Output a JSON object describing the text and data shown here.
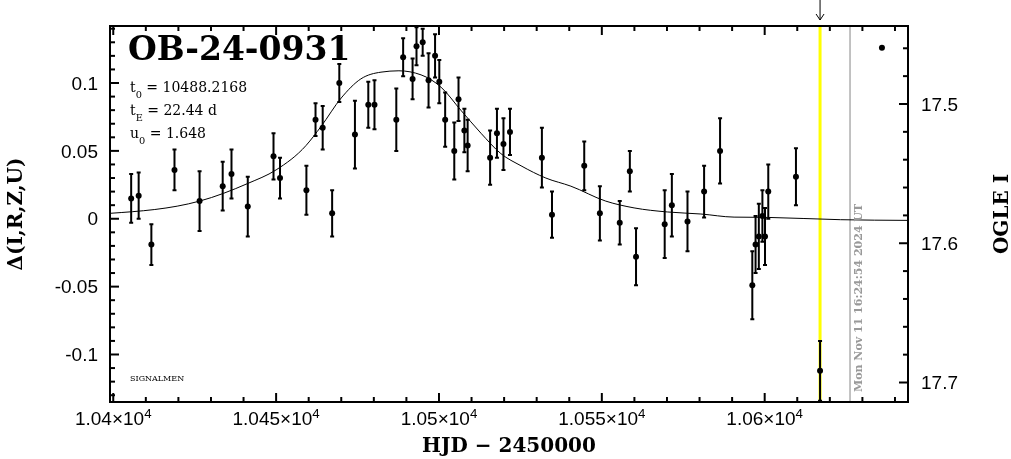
{
  "chart_data": {
    "type": "scatter",
    "title": "OB-24-0931",
    "xlabel": "HJD − 2450000",
    "ylabel": "Δ(I,R,Z,U)",
    "y2label": "OGLE I",
    "xlim": [
      10399,
      10644
    ],
    "ylim": [
      -0.135,
      0.142
    ],
    "y2lim": [
      17.714,
      17.444
    ],
    "xticks": [
      {
        "value": 10400,
        "label": "1.04×10$^{4}$"
      },
      {
        "value": 10410,
        "label": null
      },
      {
        "value": 10420,
        "label": null
      },
      {
        "value": 10430,
        "label": null
      },
      {
        "value": 10440,
        "label": null
      },
      {
        "value": 10450,
        "label": "1.045×10$^{4}$"
      },
      {
        "value": 10460,
        "label": null
      },
      {
        "value": 10470,
        "label": null
      },
      {
        "value": 10480,
        "label": null
      },
      {
        "value": 10490,
        "label": null
      },
      {
        "value": 10500,
        "label": "1.05×10$^{4}$"
      },
      {
        "value": 10510,
        "label": null
      },
      {
        "value": 10520,
        "label": null
      },
      {
        "value": 10530,
        "label": null
      },
      {
        "value": 10540,
        "label": null
      },
      {
        "value": 10550,
        "label": "1.055×10$^{4}$"
      },
      {
        "value": 10560,
        "label": null
      },
      {
        "value": 10570,
        "label": null
      },
      {
        "value": 10580,
        "label": null
      },
      {
        "value": 10590,
        "label": null
      },
      {
        "value": 10600,
        "label": "1.06×10$^{4}$"
      },
      {
        "value": 10610,
        "label": null
      },
      {
        "value": 10620,
        "label": null
      },
      {
        "value": 10630,
        "label": null
      },
      {
        "value": 10640,
        "label": null
      }
    ],
    "yticks": [
      {
        "value": -0.13,
        "label": null
      },
      {
        "value": -0.12,
        "label": null
      },
      {
        "value": -0.11,
        "label": null
      },
      -0.1,
      {
        "value": -0.09,
        "label": null
      },
      {
        "value": -0.08,
        "label": null
      },
      {
        "value": -0.07,
        "label": null
      },
      {
        "value": -0.06,
        "label": null
      },
      -0.05,
      {
        "value": -0.04,
        "label": null
      },
      {
        "value": -0.03,
        "label": null
      },
      {
        "value": -0.02,
        "label": null
      },
      {
        "value": -0.01,
        "label": null
      },
      0,
      {
        "value": 0.01,
        "label": null
      },
      {
        "value": 0.02,
        "label": null
      },
      {
        "value": 0.03,
        "label": null
      },
      {
        "value": 0.04,
        "label": null
      },
      0.05,
      {
        "value": 0.06,
        "label": null
      },
      {
        "value": 0.07,
        "label": null
      },
      {
        "value": 0.08,
        "label": null
      },
      {
        "value": 0.09,
        "label": null
      },
      0.1,
      {
        "value": 0.11,
        "label": null
      },
      {
        "value": 0.12,
        "label": null
      },
      {
        "value": 0.13,
        "label": null
      },
      {
        "value": 0.14,
        "label": null
      }
    ],
    "y2ticks": [
      {
        "value": 17.46,
        "label": null
      },
      {
        "value": 17.48,
        "label": null
      },
      17.5,
      {
        "value": 17.52,
        "label": null
      },
      {
        "value": 17.54,
        "label": null
      },
      {
        "value": 17.56,
        "label": null
      },
      {
        "value": 17.58,
        "label": null
      },
      17.6,
      {
        "value": 17.62,
        "label": null
      },
      {
        "value": 17.64,
        "label": null
      },
      {
        "value": 17.66,
        "label": null
      },
      {
        "value": 17.68,
        "label": null
      },
      17.7
    ],
    "grid": false,
    "marker": "circle",
    "annotations": [
      "t$_{0}$ = 10488.2168",
      "t$_{E}$ = 22.44 d",
      "u$_{0}$ = 1.648",
      "SIGNALMEN",
      "Mon Nov 11 16:24:54 2024 UT"
    ],
    "ref_lines": [
      {
        "axis": "x",
        "value": 10617,
        "label": null,
        "color": "#ffff00"
      },
      {
        "axis": "x",
        "value": 10626.2,
        "label": null,
        "color": "#999999"
      }
    ],
    "series": [
      {
        "type": "line",
        "color": "#000000",
        "marker": "none",
        "x": [
          10399,
          10426.5,
          10441.3,
          10450,
          10459.2,
          10463.8,
          10470,
          10476,
          10482.2,
          10487.7,
          10494.5,
          10500.6,
          10506.7,
          10512.9,
          10519,
          10525.2,
          10532.8,
          10540.5,
          10551.2,
          10559.9,
          10570.1,
          10580.4,
          10590.6,
          10600.8,
          10623.3,
          10644
        ],
        "values": [
          0.004,
          0.013,
          0.026,
          0.036,
          0.054,
          0.068,
          0.089,
          0.103,
          0.108,
          0.109,
          0.106,
          0.097,
          0.08,
          0.063,
          0.048,
          0.039,
          0.03,
          0.024,
          0.013,
          0.008,
          0.005,
          0.0035,
          0.0012,
          0.001,
          -0.0007,
          -0.0012
        ]
      },
      {
        "color": "#000000",
        "x": [
          10636
        ],
        "values": [
          0.126
        ]
      },
      {
        "color": "#000000",
        "x": [
          10405.5,
          10407.8,
          10411.7,
          10418.8,
          10426.5,
          10433.6,
          10436.3,
          10441.3,
          10449.2,
          10451.2,
          10459.3,
          10462.1,
          10464.3,
          10467.2,
          10469.4,
          10474.2,
          10478.3,
          10480.2,
          10486.9,
          10489,
          10491.9,
          10493.1,
          10495,
          10496.8,
          10498.8,
          10500.1,
          10501.9,
          10504.7,
          10506,
          10507.8,
          10508.8,
          10515.7,
          10517.8,
          10519.8,
          10521.8,
          10531.6,
          10534.7,
          10544.6,
          10549.4,
          10555.5,
          10558.6,
          10560.5,
          10569.3,
          10571.5,
          10576.3,
          10581.4,
          10586.3,
          10596.2,
          10597.2,
          10598.2,
          10599.3,
          10600.1,
          10601.1,
          10609.6,
          10617
        ],
        "values": [
          0.015,
          0.017,
          -0.019,
          0.036,
          0.013,
          0.024,
          0.033,
          0.009,
          0.046,
          0.03,
          0.021,
          0.073,
          0.067,
          0.004,
          0.1,
          0.062,
          0.084,
          0.084,
          0.073,
          0.119,
          0.103,
          0.127,
          0.13,
          0.102,
          0.12,
          0.101,
          0.073,
          0.05,
          0.088,
          0.065,
          0.054,
          0.045,
          0.063,
          0.055,
          0.064,
          0.045,
          0.003,
          0.039,
          0.004,
          -0.003,
          0.035,
          -0.028,
          -0.004,
          0.01,
          -0.002,
          0.02,
          0.05,
          -0.049,
          -0.019,
          -0.013,
          0.002,
          -0.013,
          0.02,
          0.031,
          -0.112
        ],
        "errors": [
          0.018,
          0.017,
          0.015,
          0.015,
          0.022,
          0.018,
          0.018,
          0.022,
          0.017,
          0.015,
          0.018,
          0.012,
          0.016,
          0.017,
          0.014,
          0.025,
          0.017,
          0.018,
          0.023,
          0.014,
          0.015,
          0.014,
          0.01,
          0.02,
          0.016,
          0.016,
          0.02,
          0.021,
          0.016,
          0.016,
          0.019,
          0.02,
          0.018,
          0.019,
          0.017,
          0.022,
          0.017,
          0.018,
          0.02,
          0.016,
          0.015,
          0.021,
          0.025,
          0.023,
          0.022,
          0.019,
          0.024,
          0.025,
          0.021,
          0.024,
          0.019,
          0.021,
          0.02,
          0.021,
          0.022
        ]
      }
    ]
  }
}
